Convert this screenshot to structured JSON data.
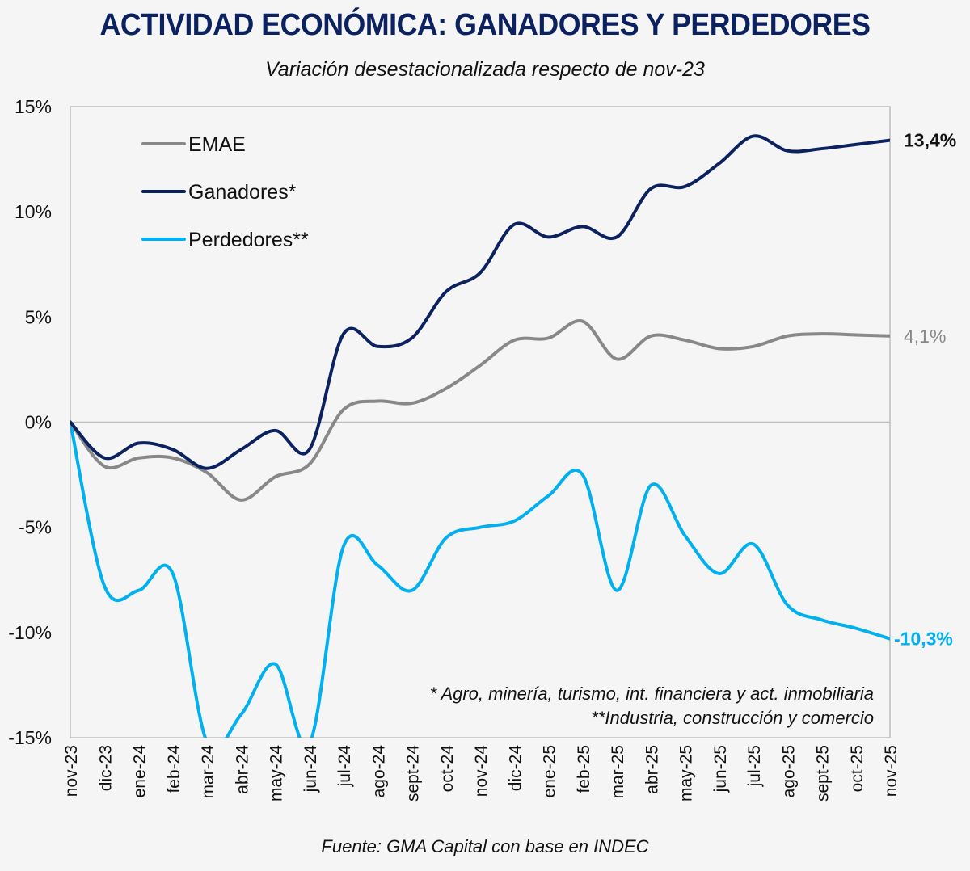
{
  "header": {
    "title": "ACTIVIDAD ECONÓMICA: GANADORES Y PERDEDORES",
    "subtitle": "Variación desestacionalizada respecto de nov-23"
  },
  "footer": {
    "source": "Fuente: GMA Capital con base en INDEC"
  },
  "notes": {
    "line1": "* Agro, minería, turismo, int. financiera y act. inmobiliaria",
    "line2": "**Industria, construcción y comercio"
  },
  "chart_data": {
    "type": "line",
    "title": "ACTIVIDAD ECONÓMICA: GANADORES Y PERDEDORES",
    "subtitle": "Variación desestacionalizada respecto de nov-23",
    "xlabel": "",
    "ylabel": "",
    "ylim": [
      -15,
      15
    ],
    "yticks": [
      15,
      10,
      5,
      0,
      -5,
      -10,
      -15
    ],
    "ytick_labels": [
      "15%",
      "10%",
      "5%",
      "0%",
      "-5%",
      "-10%",
      "-15%"
    ],
    "grid": false,
    "zero_line": true,
    "legend_position": "top-left",
    "categories": [
      "nov-23",
      "dic-23",
      "ene-24",
      "feb-24",
      "mar-24",
      "abr-24",
      "may-24",
      "jun-24",
      "jul-24",
      "ago-24",
      "sept-24",
      "oct-24",
      "nov-24",
      "dic-24",
      "ene-25",
      "feb-25",
      "mar-25",
      "abr-25",
      "may-25",
      "jun-25",
      "jul-25",
      "ago-25",
      "sept-25",
      "oct-25",
      "nov-25"
    ],
    "series": [
      {
        "name": "EMAE",
        "color": "#888888",
        "values": [
          0,
          -2.1,
          -1.7,
          -1.7,
          -2.4,
          -3.7,
          -2.6,
          -2.0,
          0.6,
          1.0,
          0.9,
          1.6,
          2.7,
          3.9,
          4.0,
          4.8,
          3.0,
          4.1,
          3.9,
          3.5,
          3.6,
          4.1,
          4.2,
          4.15,
          4.1
        ],
        "end_label": "4,1%",
        "end_label_color": "#888888"
      },
      {
        "name": "Ganadores*",
        "color": "#0b2160",
        "values": [
          0,
          -1.7,
          -1.0,
          -1.3,
          -2.2,
          -1.3,
          -0.4,
          -1.3,
          4.2,
          3.6,
          4.0,
          6.2,
          7.1,
          9.4,
          8.8,
          9.3,
          8.8,
          11.1,
          11.2,
          12.3,
          13.6,
          12.9,
          13.0,
          13.2,
          13.4
        ],
        "end_label": "13,4%",
        "end_label_color": "#111111"
      },
      {
        "name": "Perdedores**",
        "color": "#00b0ef",
        "values": [
          0,
          -7.8,
          -8.0,
          -7.2,
          -15.2,
          -13.9,
          -11.5,
          -15.3,
          -5.9,
          -6.8,
          -8.0,
          -5.5,
          -5.0,
          -4.7,
          -3.5,
          -2.5,
          -8.0,
          -3.0,
          -5.4,
          -7.2,
          -5.8,
          -8.7,
          -9.4,
          -9.8,
          -10.3
        ],
        "end_label": "-10,3%",
        "end_label_color": "#00b0ef"
      }
    ]
  }
}
